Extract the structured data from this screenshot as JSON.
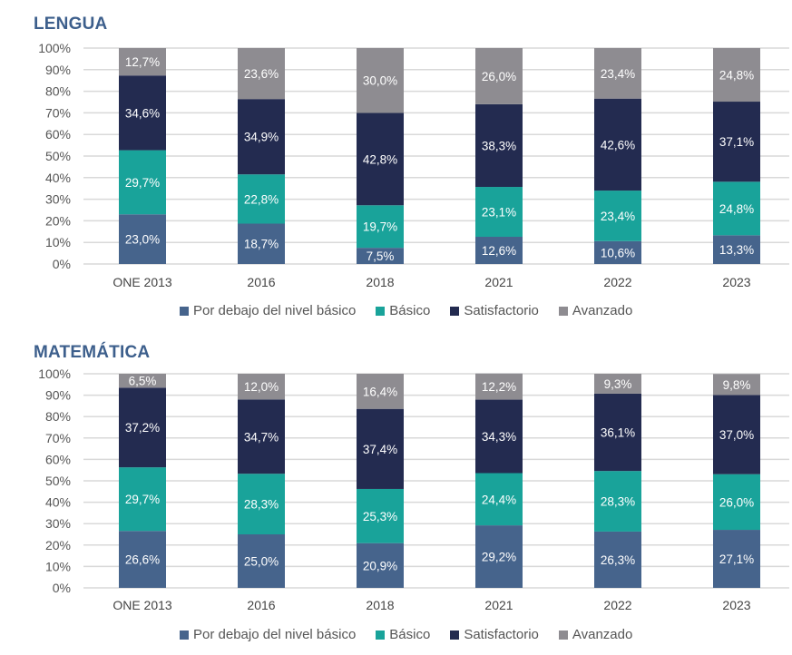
{
  "colors": {
    "Por debajo del nivel básico": "#46648c",
    "Básico": "#19a39a",
    "Satisfactorio": "#232b50",
    "Avanzado": "#8e8c91"
  },
  "chart_data": [
    {
      "type": "bar",
      "stacked": true,
      "title": "LENGUA",
      "categories": [
        "ONE 2013",
        "2016",
        "2018",
        "2021",
        "2022",
        "2023"
      ],
      "yticks": [
        "0%",
        "10%",
        "20%",
        "30%",
        "40%",
        "50%",
        "60%",
        "70%",
        "80%",
        "90%",
        "100%"
      ],
      "ylim": [
        0,
        100
      ],
      "grid": true,
      "legend_position": "bottom",
      "series": [
        {
          "name": "Por debajo del nivel básico",
          "values": [
            23.0,
            18.7,
            7.5,
            12.6,
            10.6,
            13.3
          ],
          "labels": [
            "23,0%",
            "18,7%",
            "7,5%",
            "12,6%",
            "10,6%",
            "13,3%"
          ]
        },
        {
          "name": "Básico",
          "values": [
            29.7,
            22.8,
            19.7,
            23.1,
            23.4,
            24.8
          ],
          "labels": [
            "29,7%",
            "22,8%",
            "19,7%",
            "23,1%",
            "23,4%",
            "24,8%"
          ]
        },
        {
          "name": "Satisfactorio",
          "values": [
            34.6,
            34.9,
            42.8,
            38.3,
            42.6,
            37.1
          ],
          "labels": [
            "34,6%",
            "34,9%",
            "42,8%",
            "38,3%",
            "42,6%",
            "37,1%"
          ]
        },
        {
          "name": "Avanzado",
          "values": [
            12.7,
            23.6,
            30.0,
            26.0,
            23.4,
            24.8
          ],
          "labels": [
            "12,7%",
            "23,6%",
            "30,0%",
            "26,0%",
            "23,4%",
            "24,8%"
          ]
        }
      ]
    },
    {
      "type": "bar",
      "stacked": true,
      "title": "MATEMÁTICA",
      "categories": [
        "ONE 2013",
        "2016",
        "2018",
        "2021",
        "2022",
        "2023"
      ],
      "yticks": [
        "0%",
        "10%",
        "20%",
        "30%",
        "40%",
        "50%",
        "60%",
        "70%",
        "80%",
        "90%",
        "100%"
      ],
      "ylim": [
        0,
        100
      ],
      "grid": true,
      "legend_position": "bottom",
      "series": [
        {
          "name": "Por debajo del nivel básico",
          "values": [
            26.6,
            25.0,
            20.9,
            29.2,
            26.3,
            27.1
          ],
          "labels": [
            "26,6%",
            "25,0%",
            "20,9%",
            "29,2%",
            "26,3%",
            "27,1%"
          ]
        },
        {
          "name": "Básico",
          "values": [
            29.7,
            28.3,
            25.3,
            24.4,
            28.3,
            26.0
          ],
          "labels": [
            "29,7%",
            "28,3%",
            "25,3%",
            "24,4%",
            "28,3%",
            "26,0%"
          ]
        },
        {
          "name": "Satisfactorio",
          "values": [
            37.2,
            34.7,
            37.4,
            34.3,
            36.1,
            37.0
          ],
          "labels": [
            "37,2%",
            "34,7%",
            "37,4%",
            "34,3%",
            "36,1%",
            "37,0%"
          ]
        },
        {
          "name": "Avanzado",
          "values": [
            6.5,
            12.0,
            16.4,
            12.2,
            9.3,
            9.8
          ],
          "labels": [
            "6,5%",
            "12,0%",
            "16,4%",
            "12,2%",
            "9,3%",
            "9,8%"
          ]
        }
      ]
    }
  ],
  "legend": [
    "Por debajo del nivel básico",
    "Básico",
    "Satisfactorio",
    "Avanzado"
  ]
}
